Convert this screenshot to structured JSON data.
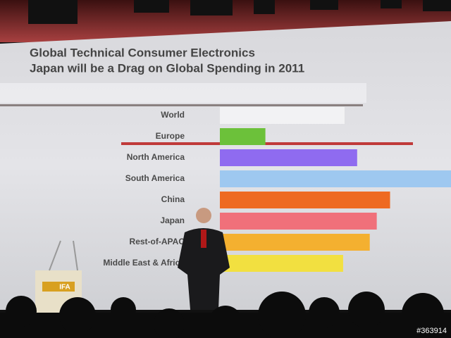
{
  "chart_data": {
    "type": "bar",
    "orientation": "horizontal",
    "title": "Global Technical Consumer Electronics",
    "subtitle": "Japan will be a Drag on Global Spending in 2011",
    "categories": [
      "World",
      "Europe",
      "North America",
      "South America",
      "China",
      "Japan",
      "Rest-of-APAC",
      "Middle East & Africa"
    ],
    "values": [
      178,
      65,
      196,
      330,
      243,
      224,
      214,
      176
    ],
    "colors": [
      "#f2f2f4",
      "#6cc13a",
      "#8f6bf0",
      "#9ec8f0",
      "#ee6a22",
      "#f0707a",
      "#f4b030",
      "#f2e040"
    ],
    "xlim": [
      0,
      330
    ],
    "annotations": [
      "IFA",
      "#363914"
    ]
  }
}
